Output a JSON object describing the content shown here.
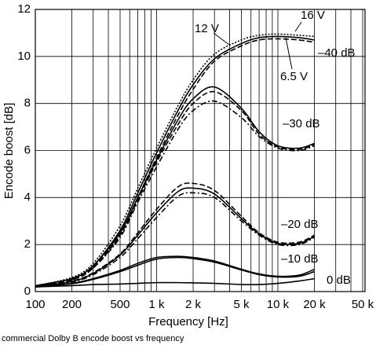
{
  "chart_data": {
    "type": "line",
    "x_label": "Frequency [Hz]",
    "y_label": "Encode boost [dB]",
    "caption": "commercial Dolby B encode boost vs frequency",
    "log_x": true,
    "grid": true,
    "xlim": [
      100,
      50000
    ],
    "ylim": [
      0,
      12
    ],
    "xticks": [
      {
        "value": 100,
        "label": "100"
      },
      {
        "value": 200,
        "label": "200"
      },
      {
        "value": 500,
        "label": "500"
      },
      {
        "value": 1000,
        "label": "1 k"
      },
      {
        "value": 2000,
        "label": "2 k"
      },
      {
        "value": 5000,
        "label": "5 k"
      },
      {
        "value": 10000,
        "label": "10 k"
      },
      {
        "value": 20000,
        "label": "20 k"
      },
      {
        "value": 50000,
        "label": "50 k"
      }
    ],
    "xminor": [
      300,
      400,
      600,
      700,
      800,
      900,
      3000,
      4000,
      6000,
      7000,
      8000,
      9000,
      30000,
      40000
    ],
    "yticks": [
      0,
      2,
      4,
      6,
      8,
      10,
      12
    ],
    "x": [
      100,
      200,
      300,
      500,
      700,
      1000,
      1500,
      2000,
      3000,
      5000,
      7000,
      10000,
      15000,
      20000
    ],
    "series": [
      {
        "name": "16 V",
        "color": "#000000",
        "dash": "dotted",
        "values": [
          0.25,
          0.6,
          1.2,
          2.8,
          4.4,
          6.1,
          7.9,
          9.0,
          10.1,
          10.7,
          10.9,
          10.95,
          10.9,
          10.85
        ]
      },
      {
        "name": "12 V",
        "color": "#000000",
        "dash": "solid",
        "values": [
          0.25,
          0.55,
          1.1,
          2.6,
          4.2,
          5.9,
          7.7,
          8.8,
          9.9,
          10.55,
          10.8,
          10.85,
          10.8,
          10.7
        ]
      },
      {
        "name": "6.5 V",
        "color": "#000000",
        "dash": "dashed",
        "values": [
          0.22,
          0.5,
          1.0,
          2.4,
          4.0,
          5.7,
          7.5,
          8.6,
          9.8,
          10.45,
          10.7,
          10.75,
          10.7,
          10.6
        ]
      },
      {
        "name": "–30 dB",
        "color": "#000000",
        "dash": "solid",
        "values": [
          0.25,
          0.55,
          1.1,
          2.5,
          4.0,
          5.6,
          7.3,
          8.2,
          8.7,
          7.8,
          6.8,
          6.2,
          6.1,
          6.3
        ]
      },
      {
        "color": "#000000",
        "dash": "dashed",
        "values": [
          0.24,
          0.52,
          1.05,
          2.4,
          3.9,
          5.5,
          7.1,
          8.0,
          8.5,
          7.7,
          6.7,
          6.15,
          6.05,
          6.25
        ]
      },
      {
        "color": "#000000",
        "dash": "dashdot",
        "values": [
          0.22,
          0.5,
          1.0,
          2.3,
          3.8,
          5.3,
          6.9,
          7.7,
          8.1,
          7.4,
          6.6,
          6.1,
          6.0,
          6.2
        ]
      },
      {
        "name": "–20 dB",
        "color": "#000000",
        "dash": "dashed",
        "values": [
          0.22,
          0.45,
          0.8,
          1.6,
          2.5,
          3.5,
          4.45,
          4.6,
          4.3,
          3.2,
          2.5,
          2.1,
          2.1,
          2.4
        ]
      },
      {
        "color": "#000000",
        "dash": "solid",
        "values": [
          0.21,
          0.43,
          0.77,
          1.55,
          2.4,
          3.35,
          4.25,
          4.4,
          4.15,
          3.1,
          2.45,
          2.05,
          2.05,
          2.35
        ]
      },
      {
        "color": "#000000",
        "dash": "dashdot",
        "values": [
          0.2,
          0.4,
          0.72,
          1.45,
          2.25,
          3.15,
          4.05,
          4.2,
          4.0,
          3.0,
          2.4,
          2.0,
          2.0,
          2.3
        ]
      },
      {
        "name": "–10 dB",
        "color": "#000000",
        "dash": "solid",
        "values": [
          0.2,
          0.35,
          0.55,
          0.9,
          1.2,
          1.45,
          1.5,
          1.45,
          1.3,
          0.95,
          0.75,
          0.65,
          0.7,
          0.95
        ]
      },
      {
        "color": "#000000",
        "dash": "solid",
        "values": [
          0.19,
          0.33,
          0.52,
          0.85,
          1.12,
          1.38,
          1.45,
          1.4,
          1.25,
          0.92,
          0.72,
          0.62,
          0.65,
          0.85
        ]
      },
      {
        "name": "0 dB",
        "color": "#000000",
        "dash": "solid",
        "values": [
          0.2,
          0.25,
          0.3,
          0.32,
          0.35,
          0.38,
          0.38,
          0.37,
          0.35,
          0.3,
          0.3,
          0.35,
          0.45,
          0.55
        ]
      }
    ],
    "annotations": [
      "–40 dB"
    ]
  }
}
